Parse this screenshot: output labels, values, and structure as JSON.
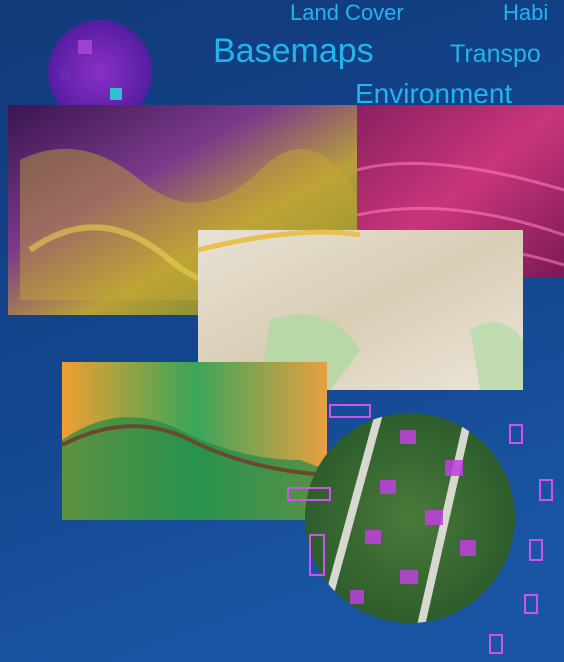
{
  "labels": {
    "land_cover": "Land Cover",
    "habitat": "Habi",
    "basemaps": "Basemaps",
    "transportation": "Transpo",
    "environment": "Environment"
  }
}
